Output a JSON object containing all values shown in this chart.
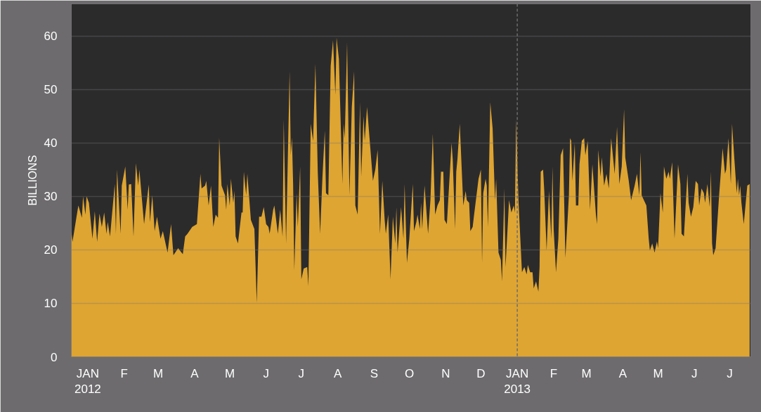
{
  "chart_data": {
    "type": "area",
    "ylabel": "BILLIONS",
    "x": [
      "2011-12-18",
      "2011-12-19",
      "2011-12-22",
      "2011-12-24",
      "2011-12-27",
      "2011-12-28",
      "2011-12-30",
      "2011-12-31",
      "2012-01-02",
      "2012-01-05",
      "2012-01-07",
      "2012-01-09",
      "2012-01-11",
      "2012-01-13",
      "2012-01-15",
      "2012-01-17",
      "2012-01-18",
      "2012-01-20",
      "2012-01-24",
      "2012-01-25",
      "2012-01-26",
      "2012-01-29",
      "2012-01-30",
      "2012-02-02",
      "2012-02-04",
      "2012-02-05",
      "2012-02-07",
      "2012-02-09",
      "2012-02-11",
      "2012-02-13",
      "2012-02-14",
      "2012-02-18",
      "2012-02-22",
      "2012-02-23",
      "2012-02-25",
      "2012-02-27",
      "2012-02-29",
      "2012-03-03",
      "2012-03-05",
      "2012-03-09",
      "2012-03-12",
      "2012-03-14",
      "2012-03-18",
      "2012-03-22",
      "2012-03-24",
      "2012-03-26",
      "2012-03-30",
      "2012-04-03",
      "2012-04-06",
      "2012-04-07",
      "2012-04-10",
      "2012-04-11",
      "2012-04-13",
      "2012-04-15",
      "2012-04-17",
      "2012-04-19",
      "2012-04-21",
      "2012-04-22",
      "2012-04-24",
      "2012-04-27",
      "2012-04-28",
      "2012-04-29",
      "2012-05-01",
      "2012-05-02",
      "2012-05-04",
      "2012-05-05",
      "2012-05-06",
      "2012-05-08",
      "2012-05-11",
      "2012-05-12",
      "2012-05-13",
      "2012-05-15",
      "2012-05-16",
      "2012-05-19",
      "2012-05-22",
      "2012-05-24",
      "2012-05-26",
      "2012-05-28",
      "2012-05-30",
      "2012-06-01",
      "2012-06-03",
      "2012-06-04",
      "2012-06-07",
      "2012-06-08",
      "2012-06-11",
      "2012-06-13",
      "2012-06-15",
      "2012-06-16",
      "2012-06-18",
      "2012-06-21",
      "2012-06-22",
      "2012-06-23",
      "2012-06-24",
      "2012-06-25",
      "2012-06-27",
      "2012-06-28",
      "2012-06-30",
      "2012-07-01",
      "2012-07-03",
      "2012-07-06",
      "2012-07-07",
      "2012-07-09",
      "2012-07-11",
      "2012-07-13",
      "2012-07-15",
      "2012-07-17",
      "2012-07-19",
      "2012-07-21",
      "2012-07-22",
      "2012-07-24",
      "2012-07-26",
      "2012-07-28",
      "2012-07-30",
      "2012-07-31",
      "2012-08-02",
      "2012-08-05",
      "2012-08-06",
      "2012-08-07",
      "2012-08-09",
      "2012-08-11",
      "2012-08-13",
      "2012-08-15",
      "2012-08-16",
      "2012-08-18",
      "2012-08-20",
      "2012-08-21",
      "2012-08-23",
      "2012-08-24",
      "2012-08-26",
      "2012-08-31",
      "2012-09-02",
      "2012-09-04",
      "2012-09-06",
      "2012-09-08",
      "2012-09-10",
      "2012-09-11",
      "2012-09-13",
      "2012-09-15",
      "2012-09-17",
      "2012-09-19",
      "2012-09-20",
      "2012-09-21",
      "2012-09-24",
      "2012-09-26",
      "2012-09-27",
      "2012-09-29",
      "2012-10-01",
      "2012-10-04",
      "2012-10-05",
      "2012-10-07",
      "2012-10-08",
      "2012-10-10",
      "2012-10-11",
      "2012-10-12",
      "2012-10-14",
      "2012-10-17",
      "2012-10-19",
      "2012-10-21",
      "2012-10-23",
      "2012-10-25",
      "2012-10-27",
      "2012-10-28",
      "2012-10-30",
      "2012-10-31",
      "2012-11-02",
      "2012-11-06",
      "2012-11-07",
      "2012-11-09",
      "2012-11-10",
      "2012-11-11",
      "2012-11-13",
      "2012-11-16",
      "2012-11-18",
      "2012-11-19",
      "2012-11-21",
      "2012-11-22",
      "2012-11-24",
      "2012-11-25",
      "2012-11-29",
      "2012-12-01",
      "2012-12-02",
      "2012-12-03",
      "2012-12-05",
      "2012-12-06",
      "2012-12-07",
      "2012-12-09",
      "2012-12-11",
      "2012-12-13",
      "2012-12-14",
      "2012-12-16",
      "2012-12-18",
      "2012-12-19",
      "2012-12-21",
      "2012-12-22",
      "2012-12-25",
      "2012-12-27",
      "2012-12-29",
      "2012-12-30",
      "2012-12-31",
      "2013-01-02",
      "2013-01-05",
      "2013-01-07",
      "2013-01-09",
      "2013-01-10",
      "2013-01-12",
      "2013-01-14",
      "2013-01-15",
      "2013-01-17",
      "2013-01-19",
      "2013-01-20",
      "2013-01-21",
      "2013-01-23",
      "2013-01-24",
      "2013-01-26",
      "2013-01-28",
      "2013-01-30",
      "2013-01-31",
      "2013-02-01",
      "2013-02-03",
      "2013-02-05",
      "2013-02-07",
      "2013-02-09",
      "2013-02-11",
      "2013-02-13",
      "2013-02-14",
      "2013-02-15",
      "2013-02-16",
      "2013-02-17",
      "2013-02-19",
      "2013-02-20",
      "2013-02-22",
      "2013-02-23",
      "2013-02-25",
      "2013-02-27",
      "2013-02-28",
      "2013-03-02",
      "2013-03-04",
      "2013-03-06",
      "2013-03-09",
      "2013-03-10",
      "2013-03-11",
      "2013-03-13",
      "2013-03-14",
      "2013-03-16",
      "2013-03-18",
      "2013-03-20",
      "2013-03-22",
      "2013-03-25",
      "2013-03-27",
      "2013-03-29",
      "2013-03-31",
      "2013-04-02",
      "2013-04-03",
      "2013-04-06",
      "2013-04-08",
      "2013-04-11",
      "2013-04-13",
      "2013-04-15",
      "2013-04-16",
      "2013-04-17",
      "2013-04-18",
      "2013-04-21",
      "2013-04-23",
      "2013-04-24",
      "2013-04-26",
      "2013-04-28",
      "2013-04-30",
      "2013-05-01",
      "2013-05-03",
      "2013-05-05",
      "2013-05-06",
      "2013-05-08",
      "2013-05-10",
      "2013-05-11",
      "2013-05-13",
      "2013-05-15",
      "2013-05-18",
      "2013-05-20",
      "2013-05-21",
      "2013-05-23",
      "2013-05-26",
      "2013-05-27",
      "2013-05-29",
      "2013-05-31",
      "2013-06-02",
      "2013-06-04",
      "2013-06-05",
      "2013-06-07",
      "2013-06-09",
      "2013-06-10",
      "2013-06-12",
      "2013-06-14",
      "2013-06-15",
      "2013-06-16",
      "2013-06-17",
      "2013-06-19",
      "2013-06-22",
      "2013-06-25",
      "2013-06-27",
      "2013-06-28",
      "2013-06-30",
      "2013-07-02",
      "2013-07-03",
      "2013-07-05",
      "2013-07-07",
      "2013-07-08",
      "2013-07-09",
      "2013-07-10",
      "2013-07-11",
      "2013-07-13",
      "2013-07-16",
      "2013-07-18"
    ],
    "series": [
      {
        "color": "#dea532",
        "values": [
          23.5,
          21.5,
          25.6,
          28.3,
          26,
          30,
          26.6,
          30,
          28.8,
          22.1,
          27.2,
          21.5,
          26.8,
          24.3,
          27,
          23,
          25.2,
          22.5,
          32.3,
          23,
          35,
          23,
          32,
          35.6,
          27.5,
          32.2,
          32.3,
          22.5,
          36.2,
          32,
          35,
          24.8,
          32.2,
          25.2,
          30.2,
          23.5,
          26.2,
          22.1,
          23.5,
          19.5,
          24.8,
          19,
          20.3,
          19.2,
          22.5,
          23,
          24.3,
          24.8,
          34.2,
          31.5,
          32,
          32.9,
          28.3,
          32,
          24.3,
          26.6,
          26,
          41,
          32,
          30.2,
          27.5,
          32.3,
          28.3,
          33.3,
          28.8,
          31,
          22.5,
          21.2,
          27,
          27,
          34.6,
          30.2,
          34.2,
          25.6,
          23.9,
          10.1,
          26.2,
          26.2,
          28,
          24.8,
          24.3,
          23,
          27.5,
          28.3,
          23,
          27.5,
          22.5,
          44.4,
          21.2,
          53.4,
          37.7,
          41,
          32.3,
          16.2,
          30.6,
          24.3,
          35.6,
          14.5,
          16.5,
          16.8,
          13.2,
          43.6,
          40.4,
          54.8,
          34.6,
          23,
          33.7,
          42.3,
          30.6,
          30.2,
          54.4,
          59.2,
          49,
          59.7,
          55.7,
          32.3,
          43.6,
          40.9,
          58.8,
          30.2,
          46.7,
          53.4,
          28.3,
          26.6,
          47.6,
          33.7,
          45,
          40.4,
          46.7,
          32.9,
          35,
          38.7,
          23,
          32.9,
          25.6,
          23,
          26.6,
          14.5,
          26.2,
          21.2,
          28,
          19.5,
          28,
          22.1,
          32.3,
          17.6,
          22.1,
          32.3,
          23.5,
          25.2,
          26.6,
          23.9,
          28.8,
          23.9,
          32,
          23,
          29.3,
          41.7,
          26.6,
          28.3,
          29.3,
          34.6,
          34.6,
          25.6,
          24.8,
          40,
          36.9,
          23.9,
          34.6,
          36.9,
          43.6,
          28.3,
          31,
          29.3,
          28.8,
          23.5,
          24.3,
          26.2,
          33.3,
          35,
          17.6,
          30.6,
          33.3,
          32,
          24.3,
          47.6,
          42.7,
          29.3,
          33.3,
          19.5,
          18.1,
          14.1,
          31.5,
          16.8,
          29.3,
          27,
          28.3,
          27,
          44.4,
          29.3,
          15.8,
          16.8,
          15.4,
          17.2,
          15.8,
          15.8,
          12.8,
          14.1,
          12.2,
          16.8,
          34.6,
          35,
          31,
          19.9,
          31,
          22.1,
          35.6,
          23.9,
          15.8,
          22.1,
          37.7,
          39,
          18.5,
          26.2,
          30.2,
          40.9,
          40.4,
          32.9,
          40,
          28.3,
          28.3,
          36,
          40.4,
          40.9,
          37.7,
          40.4,
          27.5,
          36,
          26.6,
          24.8,
          38.7,
          33.7,
          37.3,
          32,
          34.2,
          31.5,
          40.9,
          34.2,
          43,
          32.3,
          35.6,
          46.3,
          37.3,
          32.9,
          29.3,
          32,
          34.2,
          30.2,
          38.3,
          30.2,
          29.7,
          28.3,
          22.1,
          19.9,
          21.2,
          19.5,
          21.6,
          20.3,
          30.6,
          27,
          35.6,
          33.3,
          34.6,
          33.3,
          36.4,
          22.1,
          36,
          32.3,
          23,
          22.5,
          34.2,
          28.8,
          26.2,
          28,
          32.9,
          32.3,
          28.3,
          31.5,
          30.6,
          28.8,
          32.3,
          28,
          34.6,
          21.2,
          19,
          20.3,
          30.2,
          39,
          34.2,
          35,
          40.9,
          32.3,
          43.6,
          36.9,
          30.6,
          33.3,
          30.2,
          32,
          28.8,
          24.8,
          32,
          32.3
        ]
      }
    ],
    "xlim": [
      "2011-12-18",
      "2013-07-19"
    ],
    "xticks": [
      {
        "value": "2012-01-01",
        "label": "JAN\n2012"
      },
      {
        "value": "2012-02-01",
        "label": "F"
      },
      {
        "value": "2012-03-01",
        "label": "M"
      },
      {
        "value": "2012-04-01",
        "label": "A"
      },
      {
        "value": "2012-05-01",
        "label": "M"
      },
      {
        "value": "2012-06-01",
        "label": "J"
      },
      {
        "value": "2012-07-01",
        "label": "J"
      },
      {
        "value": "2012-08-01",
        "label": "A"
      },
      {
        "value": "2012-09-01",
        "label": "S"
      },
      {
        "value": "2012-10-01",
        "label": "O"
      },
      {
        "value": "2012-11-01",
        "label": "N"
      },
      {
        "value": "2012-12-01",
        "label": "D"
      },
      {
        "value": "2013-01-01",
        "label": "JAN\n2013"
      },
      {
        "value": "2013-02-01",
        "label": "F"
      },
      {
        "value": "2013-03-01",
        "label": "M"
      },
      {
        "value": "2013-04-01",
        "label": "A"
      },
      {
        "value": "2013-05-01",
        "label": "M"
      },
      {
        "value": "2013-06-01",
        "label": "J"
      },
      {
        "value": "2013-07-01",
        "label": "J"
      }
    ],
    "ylim": [
      0,
      66
    ],
    "yticks": [
      0,
      10,
      20,
      30,
      40,
      50,
      60
    ],
    "grid": "y",
    "ref_lines": [
      {
        "axis": "x",
        "value": "2013-01-01",
        "color": "#6e6c6e",
        "line_style": "dashed"
      }
    ]
  }
}
